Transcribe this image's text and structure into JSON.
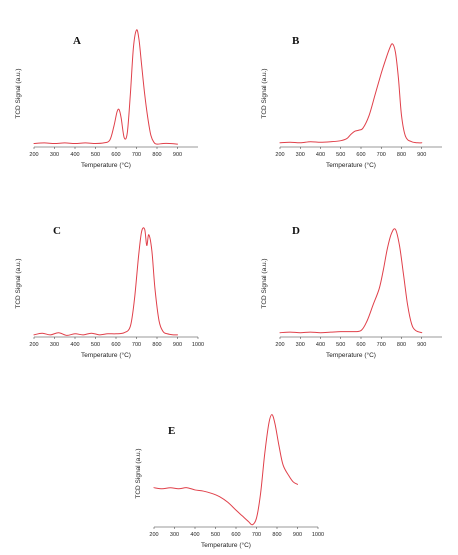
{
  "colors": {
    "curve": "#e0404a",
    "axis": "#333333"
  },
  "chart_data": [
    {
      "type": "line",
      "panel": "A",
      "xlabel": "Temperature (°C)",
      "ylabel": "TCD Signal (a.u.)",
      "xlim": [
        200,
        1000
      ],
      "xticks": [
        200,
        300,
        400,
        500,
        600,
        700,
        800,
        900,
        1000
      ],
      "ylim": [
        0,
        1
      ],
      "series": [
        {
          "x": [
            200,
            250,
            300,
            350,
            400,
            450,
            500,
            540,
            570,
            590,
            605,
            615,
            625,
            640,
            655,
            670,
            685,
            700,
            712,
            725,
            740,
            755,
            770,
            785,
            800,
            830,
            860,
            900
          ],
          "y": [
            0.03,
            0.035,
            0.03,
            0.035,
            0.03,
            0.035,
            0.03,
            0.035,
            0.06,
            0.18,
            0.3,
            0.32,
            0.25,
            0.08,
            0.12,
            0.45,
            0.85,
            1.0,
            0.92,
            0.7,
            0.45,
            0.25,
            0.1,
            0.04,
            0.025,
            0.03,
            0.03,
            0.025
          ]
        }
      ]
    },
    {
      "type": "line",
      "panel": "B",
      "xlabel": "Temperature (°C)",
      "ylabel": "TCD Signal (a.u.)",
      "xlim": [
        200,
        1000
      ],
      "xticks": [
        200,
        300,
        400,
        500,
        600,
        700,
        800,
        900,
        1000
      ],
      "ylim": [
        0,
        1
      ],
      "series": [
        {
          "x": [
            200,
            250,
            300,
            350,
            400,
            450,
            500,
            530,
            550,
            570,
            590,
            610,
            640,
            670,
            700,
            720,
            740,
            755,
            770,
            785,
            800,
            820,
            850,
            880,
            900
          ],
          "y": [
            0.04,
            0.045,
            0.04,
            0.05,
            0.045,
            0.05,
            0.06,
            0.08,
            0.12,
            0.15,
            0.16,
            0.18,
            0.3,
            0.5,
            0.7,
            0.82,
            0.93,
            0.98,
            0.9,
            0.65,
            0.3,
            0.1,
            0.05,
            0.04,
            0.04
          ]
        }
      ]
    },
    {
      "type": "line",
      "panel": "C",
      "xlabel": "Temperature (°C)",
      "ylabel": "TCD Signal (a.u.)",
      "xlim": [
        200,
        1000
      ],
      "xticks": [
        200,
        300,
        400,
        500,
        600,
        700,
        800,
        900,
        1000
      ],
      "ylim": [
        0,
        1
      ],
      "series": [
        {
          "x": [
            200,
            240,
            280,
            320,
            360,
            400,
            440,
            480,
            520,
            560,
            600,
            640,
            670,
            690,
            710,
            725,
            740,
            750,
            760,
            775,
            790,
            810,
            830,
            850,
            880,
            900
          ],
          "y": [
            0.02,
            0.035,
            0.02,
            0.04,
            0.015,
            0.03,
            0.02,
            0.035,
            0.02,
            0.03,
            0.03,
            0.04,
            0.1,
            0.35,
            0.75,
            0.98,
            1.0,
            0.85,
            0.95,
            0.8,
            0.45,
            0.15,
            0.05,
            0.03,
            0.02,
            0.02
          ]
        }
      ]
    },
    {
      "type": "line",
      "panel": "D",
      "xlabel": "Temperature (°C)",
      "ylabel": "TCD Signal (a.u.)",
      "xlim": [
        200,
        1000
      ],
      "xticks": [
        200,
        300,
        400,
        500,
        600,
        700,
        800,
        900,
        1000
      ],
      "ylim": [
        0,
        1
      ],
      "series": [
        {
          "x": [
            200,
            250,
            300,
            350,
            400,
            450,
            500,
            550,
            600,
            630,
            660,
            690,
            710,
            730,
            750,
            770,
            790,
            810,
            830,
            850,
            870,
            900
          ],
          "y": [
            0.04,
            0.045,
            0.04,
            0.045,
            0.04,
            0.045,
            0.05,
            0.05,
            0.06,
            0.15,
            0.3,
            0.45,
            0.62,
            0.82,
            0.96,
            1.0,
            0.85,
            0.58,
            0.3,
            0.12,
            0.06,
            0.04
          ]
        }
      ]
    },
    {
      "type": "line",
      "panel": "E",
      "xlabel": "Temperature (°C)",
      "ylabel": "TCD Signal (a.u.)",
      "xlim": [
        200,
        1000
      ],
      "xticks": [
        200,
        300,
        400,
        500,
        600,
        700,
        800,
        900,
        1000
      ],
      "ylim": [
        0,
        1
      ],
      "series": [
        {
          "x": [
            200,
            240,
            280,
            320,
            360,
            400,
            440,
            480,
            520,
            560,
            600,
            630,
            660,
            680,
            700,
            720,
            740,
            760,
            775,
            790,
            810,
            830,
            860,
            880,
            900
          ],
          "y": [
            0.35,
            0.34,
            0.35,
            0.34,
            0.35,
            0.33,
            0.32,
            0.3,
            0.27,
            0.22,
            0.15,
            0.1,
            0.05,
            0.02,
            0.08,
            0.3,
            0.65,
            0.92,
            1.0,
            0.92,
            0.72,
            0.55,
            0.45,
            0.4,
            0.38
          ]
        }
      ]
    }
  ]
}
